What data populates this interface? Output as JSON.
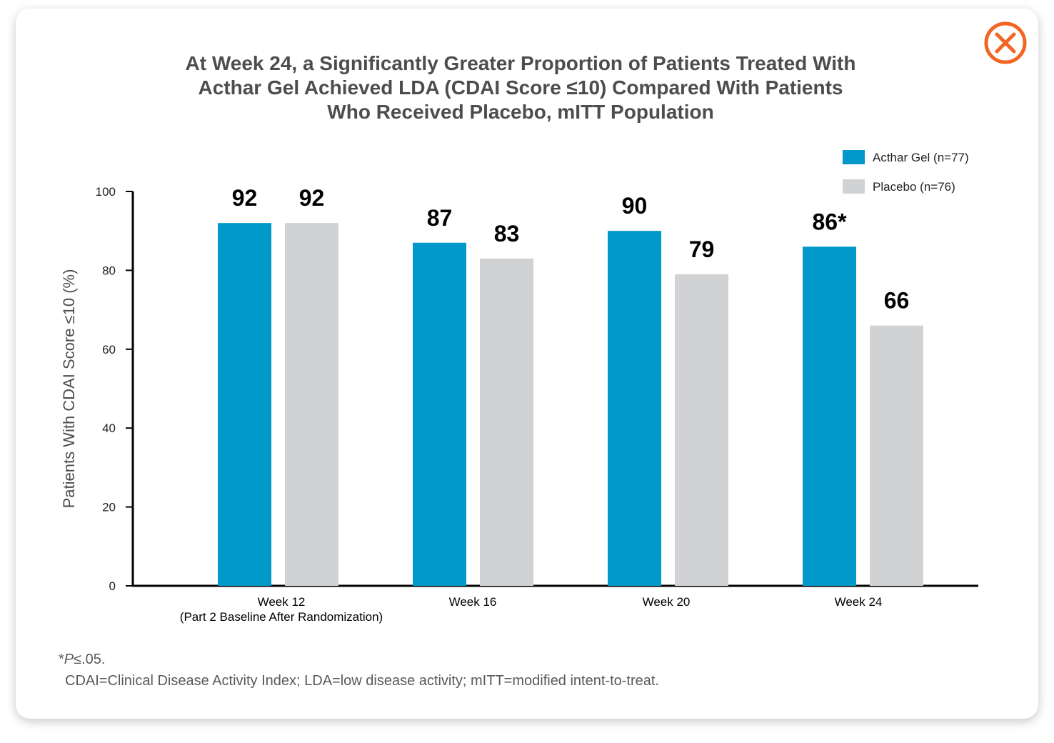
{
  "modal": {
    "close_icon": "close-circle-x-icon",
    "close_color": "#f26522"
  },
  "chart_data": {
    "type": "bar",
    "title": "At Week 24, a Significantly Greater Proportion of Patients Treated With\nActhar Gel Achieved LDA (CDAI Score ≤10) Compared With Patients\nWho Received Placebo, mITT Population",
    "ylabel": "Patients With CDAI Score ≤10 (%)",
    "xlabel": "",
    "ylim": [
      0,
      100
    ],
    "yticks": [
      "0",
      "20",
      "40",
      "60",
      "80",
      "100"
    ],
    "categories": [
      "Week 12",
      "Week 16",
      "Week 20",
      "Week 24"
    ],
    "category_sublabels": [
      "(Part 2 Baseline After Randomization)",
      "",
      "",
      ""
    ],
    "series": [
      {
        "name": "Acthar Gel (n=77)",
        "color": "#0099c9",
        "values": [
          92,
          87,
          90,
          86
        ],
        "labels": [
          "92",
          "87",
          "90",
          "86*"
        ]
      },
      {
        "name": "Placebo (n=76)",
        "color": "#d1d2d4",
        "values": [
          92,
          83,
          79,
          66
        ],
        "labels": [
          "92",
          "83",
          "79",
          "66"
        ]
      }
    ],
    "legend_position": "top-right",
    "grid": false
  },
  "footnotes": {
    "asterisk": "*",
    "p_italic": "P",
    "p_rest": "≤.05.",
    "abbreviations": "CDAI=Clinical Disease Activity Index; LDA=low disease activity; mITT=modified intent-to-treat."
  }
}
